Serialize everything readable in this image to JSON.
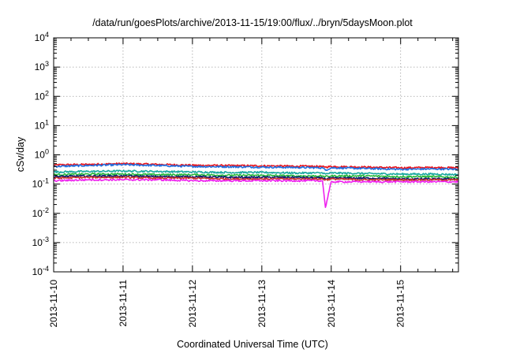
{
  "chart_data": {
    "type": "line",
    "title": "/data/run/goesPlots/archive/2013-11-15/19:00/flux/../bryn/5daysMoon.plot",
    "xlabel": "Coordinated Universal Time (UTC)",
    "ylabel": "cSv/day",
    "yscale": "log",
    "ylim": [
      0.0001,
      10000
    ],
    "y_ticks": [
      {
        "value": 0.0001,
        "base": "10",
        "exp": "-4"
      },
      {
        "value": 0.001,
        "base": "10",
        "exp": "-3"
      },
      {
        "value": 0.01,
        "base": "10",
        "exp": "-2"
      },
      {
        "value": 0.1,
        "base": "10",
        "exp": "-1"
      },
      {
        "value": 1,
        "base": "10",
        "exp": "0"
      },
      {
        "value": 10,
        "base": "10",
        "exp": "1"
      },
      {
        "value": 100,
        "base": "10",
        "exp": "2"
      },
      {
        "value": 1000,
        "base": "10",
        "exp": "3"
      },
      {
        "value": 10000,
        "base": "10",
        "exp": "4"
      }
    ],
    "xlim": [
      "2013-11-10 00:00",
      "2013-11-15 20:00"
    ],
    "x_ticks": [
      "2013-11-10",
      "2013-11-11",
      "2013-11-12",
      "2013-11-13",
      "2013-11-14",
      "2013-11-15"
    ],
    "grid": true,
    "x": [
      "2013-11-10 00:00",
      "2013-11-10 12:00",
      "2013-11-11 00:00",
      "2013-11-11 12:00",
      "2013-11-12 00:00",
      "2013-11-12 12:00",
      "2013-11-13 00:00",
      "2013-11-13 12:00",
      "2013-11-13 21:00",
      "2013-11-13 22:00",
      "2013-11-14 00:00",
      "2013-11-14 12:00",
      "2013-11-15 00:00",
      "2013-11-15 12:00",
      "2013-11-15 20:00"
    ],
    "series": [
      {
        "color": "#e8141c",
        "values": [
          0.45,
          0.47,
          0.5,
          0.47,
          0.44,
          0.43,
          0.42,
          0.41,
          0.4,
          0.38,
          0.4,
          0.38,
          0.36,
          0.37,
          0.36
        ]
      },
      {
        "color": "#1f6fe0",
        "values": [
          0.4,
          0.43,
          0.46,
          0.43,
          0.4,
          0.39,
          0.38,
          0.37,
          0.36,
          0.3,
          0.36,
          0.34,
          0.32,
          0.33,
          0.32
        ]
      },
      {
        "color": "#1aa9a0",
        "values": [
          0.26,
          0.27,
          0.28,
          0.27,
          0.26,
          0.25,
          0.25,
          0.24,
          0.24,
          0.22,
          0.24,
          0.23,
          0.22,
          0.22,
          0.21
        ]
      },
      {
        "color": "#27b83a",
        "values": [
          0.21,
          0.22,
          0.22,
          0.21,
          0.21,
          0.2,
          0.2,
          0.19,
          0.19,
          0.18,
          0.19,
          0.19,
          0.18,
          0.18,
          0.17
        ]
      },
      {
        "color": "#0a1a6e",
        "values": [
          0.18,
          0.19,
          0.19,
          0.18,
          0.18,
          0.17,
          0.17,
          0.17,
          0.16,
          0.15,
          0.16,
          0.16,
          0.15,
          0.15,
          0.15
        ]
      },
      {
        "color": "#c8302a",
        "values": [
          0.16,
          0.17,
          0.17,
          0.16,
          0.16,
          0.15,
          0.15,
          0.15,
          0.15,
          0.14,
          0.15,
          0.14,
          0.14,
          0.14,
          0.14
        ]
      },
      {
        "color": "#ee22ee",
        "values": [
          0.13,
          0.14,
          0.14,
          0.14,
          0.13,
          0.13,
          0.13,
          0.13,
          0.13,
          0.016,
          0.12,
          0.12,
          0.12,
          0.12,
          0.12
        ]
      }
    ]
  }
}
